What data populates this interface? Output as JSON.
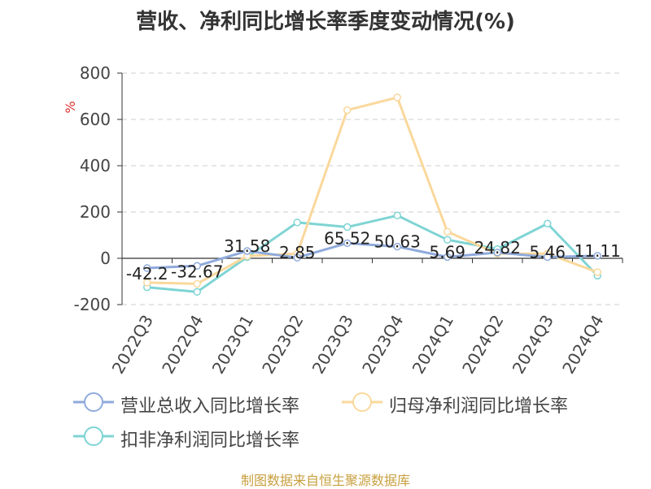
{
  "title": "营收、净利同比增长率季度变动情况(%)",
  "source": "制图数据来自恒生聚源数据库",
  "chart_data": {
    "type": "line",
    "y_unit": "%",
    "ylim": [
      -200,
      800
    ],
    "yticks": [
      -200,
      0,
      200,
      400,
      600,
      800
    ],
    "grid": true,
    "legend_position": "bottom",
    "categories": [
      "2022Q3",
      "2022Q4",
      "2023Q1",
      "2023Q2",
      "2023Q3",
      "2023Q4",
      "2024Q1",
      "2024Q2",
      "2024Q3",
      "2024Q4"
    ],
    "series": [
      {
        "name": "营业总收入同比增长率",
        "color": "#8faadc",
        "values": [
          -42.2,
          -32.67,
          31.58,
          2.85,
          65.52,
          50.63,
          5.69,
          24.82,
          5.46,
          11.11
        ],
        "labels": [
          "-42.2",
          "-32.67",
          "31.58",
          "2.85",
          "65.52",
          "50.63",
          "5.69",
          "24.82",
          "5.46",
          "11.11"
        ]
      },
      {
        "name": "归母净利润同比增长率",
        "color": "#fad89c",
        "values": [
          -105,
          -110,
          10,
          20,
          640,
          695,
          115,
          20,
          20,
          -60
        ]
      },
      {
        "name": "扣非净利润同比增长率",
        "color": "#7fd4d4",
        "values": [
          -125,
          -145,
          5,
          155,
          135,
          185,
          80,
          40,
          150,
          -75
        ]
      }
    ]
  }
}
